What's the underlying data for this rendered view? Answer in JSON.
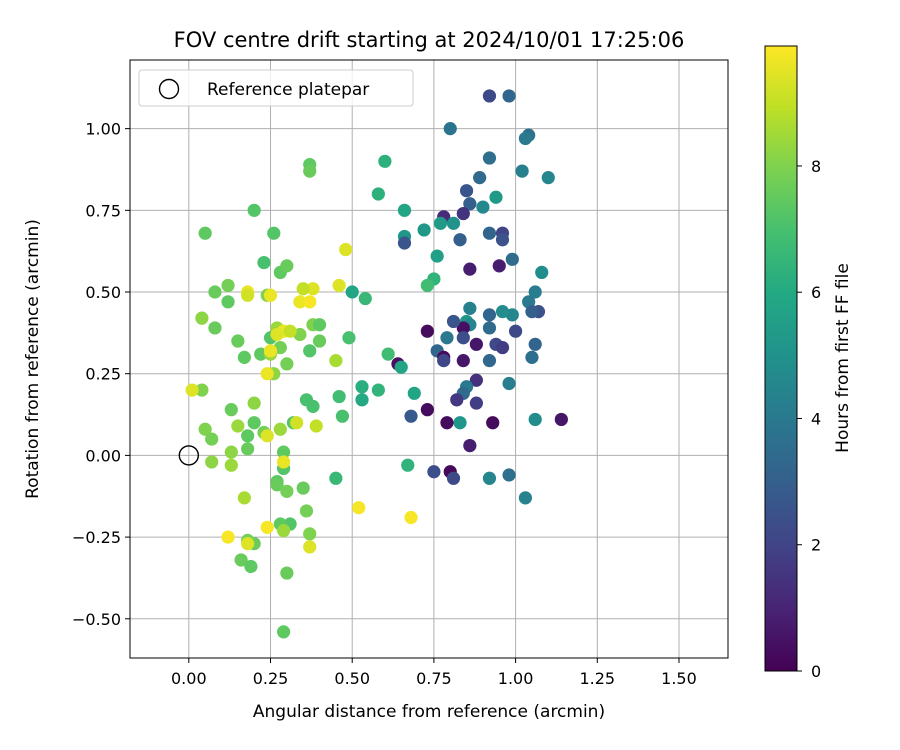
{
  "chart_data": {
    "type": "scatter",
    "title": "FOV centre drift starting at 2024/10/01 17:25:06",
    "xlabel": "Angular distance from reference (arcmin)",
    "ylabel": "Rotation from reference (arcmin)",
    "xlim": [
      -0.18,
      1.65
    ],
    "ylim": [
      -0.62,
      1.21
    ],
    "xticks": [
      "0.00",
      "0.25",
      "0.50",
      "0.75",
      "1.00",
      "1.25",
      "1.50"
    ],
    "xtick_values": [
      0,
      0.25,
      0.5,
      0.75,
      1.0,
      1.25,
      1.5
    ],
    "yticks": [
      "1.00",
      "0.75",
      "0.50",
      "0.25",
      "0.00",
      "−0.25",
      "−0.50"
    ],
    "ytick_values": [
      1.0,
      0.75,
      0.5,
      0.25,
      0,
      -0.25,
      -0.5
    ],
    "grid": true,
    "legend": {
      "placement": "top-left",
      "entries": [
        "Reference platepar"
      ]
    },
    "reference_point": {
      "x": 0.0,
      "y": 0.0
    },
    "colorbar": {
      "label": "Hours from first FF file",
      "colormap": "viridis",
      "range": [
        0,
        9.9
      ],
      "ticks": [
        "0",
        "2",
        "4",
        "6",
        "8"
      ],
      "tick_values": [
        0,
        2,
        4,
        6,
        8
      ]
    },
    "series": [
      {
        "points": [
          [
            0.92,
            1.1,
            2.2
          ],
          [
            0.98,
            1.1,
            3.3
          ],
          [
            0.8,
            1.0,
            3.8
          ],
          [
            1.04,
            0.98,
            3.6
          ],
          [
            1.03,
            0.97,
            4.0
          ],
          [
            0.92,
            0.91,
            3.6
          ],
          [
            1.02,
            0.87,
            4.3
          ],
          [
            1.1,
            0.85,
            4.5
          ],
          [
            0.85,
            0.81,
            2.6
          ],
          [
            0.89,
            0.85,
            3.4
          ],
          [
            0.86,
            0.77,
            3.0
          ],
          [
            0.9,
            0.76,
            4.6
          ],
          [
            0.94,
            0.79,
            5.3
          ],
          [
            0.84,
            0.74,
            1.5
          ],
          [
            0.78,
            0.73,
            1.2
          ],
          [
            0.81,
            0.71,
            5.0
          ],
          [
            0.77,
            0.71,
            5.4
          ],
          [
            0.83,
            0.66,
            3.0
          ],
          [
            0.92,
            0.68,
            3.2
          ],
          [
            0.96,
            0.68,
            2.0
          ],
          [
            0.96,
            0.66,
            2.5
          ],
          [
            0.99,
            0.6,
            3.5
          ],
          [
            0.86,
            0.57,
            0.8
          ],
          [
            0.95,
            0.58,
            0.8
          ],
          [
            1.08,
            0.56,
            4.8
          ],
          [
            1.06,
            0.5,
            4.2
          ],
          [
            1.04,
            0.47,
            4.0
          ],
          [
            1.07,
            0.44,
            2.5
          ],
          [
            1.05,
            0.44,
            3.0
          ],
          [
            0.99,
            0.43,
            4.5
          ],
          [
            0.96,
            0.44,
            4.8
          ],
          [
            0.92,
            0.43,
            3.2
          ],
          [
            0.86,
            0.45,
            4.3
          ],
          [
            0.85,
            0.41,
            5.2
          ],
          [
            0.86,
            0.4,
            4.5
          ],
          [
            0.84,
            0.39,
            0.4
          ],
          [
            0.81,
            0.41,
            2.6
          ],
          [
            0.79,
            0.36,
            4.0
          ],
          [
            0.76,
            0.32,
            3.3
          ],
          [
            0.73,
            0.38,
            0.3
          ],
          [
            0.78,
            0.3,
            0.3
          ],
          [
            0.78,
            0.29,
            2.1
          ],
          [
            0.84,
            0.29,
            0.6
          ],
          [
            0.84,
            0.36,
            2.4
          ],
          [
            0.88,
            0.34,
            0.6
          ],
          [
            0.92,
            0.39,
            3.4
          ],
          [
            0.94,
            0.34,
            2.2
          ],
          [
            0.96,
            0.33,
            1.8
          ],
          [
            0.92,
            0.29,
            3.3
          ],
          [
            1.0,
            0.38,
            2.2
          ],
          [
            1.06,
            0.34,
            3.2
          ],
          [
            1.05,
            0.3,
            3.6
          ],
          [
            0.88,
            0.23,
            1.4
          ],
          [
            0.85,
            0.21,
            4.0
          ],
          [
            0.84,
            0.19,
            3.4
          ],
          [
            0.82,
            0.17,
            1.6
          ],
          [
            0.88,
            0.16,
            1.8
          ],
          [
            0.98,
            0.22,
            4.2
          ],
          [
            0.86,
            0.03,
            0.8
          ],
          [
            0.93,
            0.1,
            0.3
          ],
          [
            0.83,
            0.1,
            5.2
          ],
          [
            0.79,
            0.1,
            0.3
          ],
          [
            0.73,
            0.14,
            0.3
          ],
          [
            0.68,
            0.12,
            2.8
          ],
          [
            0.64,
            0.28,
            0.4
          ],
          [
            0.65,
            0.27,
            5.8
          ],
          [
            0.69,
            0.19,
            5.8
          ],
          [
            0.75,
            -0.05,
            2.4
          ],
          [
            0.8,
            -0.05,
            0.2
          ],
          [
            0.81,
            -0.07,
            2.2
          ],
          [
            0.92,
            -0.07,
            4.5
          ],
          [
            0.98,
            -0.06,
            3.6
          ],
          [
            1.03,
            -0.13,
            4.4
          ],
          [
            1.06,
            0.11,
            4.8
          ],
          [
            1.14,
            0.11,
            0.6
          ],
          [
            0.6,
            0.9,
            6.3
          ],
          [
            0.58,
            0.8,
            6.3
          ],
          [
            0.66,
            0.75,
            5.8
          ],
          [
            0.66,
            0.67,
            5.2
          ],
          [
            0.66,
            0.65,
            2.6
          ],
          [
            0.72,
            0.69,
            5.2
          ],
          [
            0.76,
            0.61,
            5.6
          ],
          [
            0.75,
            0.54,
            6.4
          ],
          [
            0.73,
            0.52,
            6.8
          ],
          [
            0.5,
            0.5,
            5.8
          ],
          [
            0.54,
            0.48,
            6.6
          ],
          [
            0.61,
            0.31,
            6.8
          ],
          [
            0.58,
            0.2,
            6.4
          ],
          [
            0.53,
            0.21,
            6.2
          ],
          [
            0.53,
            0.17,
            6.0
          ],
          [
            0.67,
            -0.03,
            6.4
          ],
          [
            0.45,
            -0.07,
            6.6
          ],
          [
            0.47,
            0.12,
            7.0
          ],
          [
            0.46,
            0.18,
            6.8
          ],
          [
            0.49,
            0.36,
            7.0
          ],
          [
            0.37,
            0.89,
            7.4
          ],
          [
            0.37,
            0.87,
            7.6
          ],
          [
            0.2,
            0.75,
            7.2
          ],
          [
            0.05,
            0.68,
            7.4
          ],
          [
            0.26,
            0.68,
            7.2
          ],
          [
            0.23,
            0.59,
            7.0
          ],
          [
            0.28,
            0.56,
            7.4
          ],
          [
            0.3,
            0.58,
            7.6
          ],
          [
            0.24,
            0.49,
            8.0
          ],
          [
            0.08,
            0.5,
            7.6
          ],
          [
            0.12,
            0.52,
            7.8
          ],
          [
            0.12,
            0.47,
            7.4
          ],
          [
            0.04,
            0.42,
            8.2
          ],
          [
            0.08,
            0.39,
            7.6
          ],
          [
            0.15,
            0.35,
            7.6
          ],
          [
            0.17,
            0.3,
            7.4
          ],
          [
            0.22,
            0.31,
            7.4
          ],
          [
            0.25,
            0.36,
            7.2
          ],
          [
            0.27,
            0.39,
            8.4
          ],
          [
            0.28,
            0.33,
            7.8
          ],
          [
            0.3,
            0.28,
            7.8
          ],
          [
            0.34,
            0.37,
            8.0
          ],
          [
            0.37,
            0.32,
            7.2
          ],
          [
            0.38,
            0.4,
            8.0
          ],
          [
            0.4,
            0.4,
            7.4
          ],
          [
            0.4,
            0.35,
            7.6
          ],
          [
            0.36,
            0.17,
            7.0
          ],
          [
            0.38,
            0.15,
            7.0
          ],
          [
            0.32,
            0.1,
            7.2
          ],
          [
            0.26,
            0.25,
            8.2
          ],
          [
            0.25,
            0.31,
            8.4
          ],
          [
            0.2,
            0.1,
            7.4
          ],
          [
            0.18,
            0.06,
            7.4
          ],
          [
            0.2,
            0.16,
            8.2
          ],
          [
            0.13,
            0.14,
            7.6
          ],
          [
            0.04,
            0.2,
            8.0
          ],
          [
            0.05,
            0.08,
            8.0
          ],
          [
            0.07,
            0.05,
            7.8
          ],
          [
            0.13,
            0.01,
            8.2
          ],
          [
            0.18,
            0.02,
            7.6
          ],
          [
            0.23,
            0.07,
            7.8
          ],
          [
            0.28,
            0.08,
            8.4
          ],
          [
            0.29,
            0.01,
            7.4
          ],
          [
            0.29,
            -0.04,
            7.2
          ],
          [
            0.27,
            -0.08,
            7.4
          ],
          [
            0.27,
            -0.09,
            7.6
          ],
          [
            0.3,
            -0.11,
            7.8
          ],
          [
            0.35,
            -0.1,
            7.6
          ],
          [
            0.31,
            -0.21,
            7.2
          ],
          [
            0.28,
            -0.21,
            7.4
          ],
          [
            0.36,
            -0.17,
            7.8
          ],
          [
            0.37,
            -0.24,
            8.0
          ],
          [
            0.29,
            -0.23,
            8.4
          ],
          [
            0.2,
            -0.27,
            7.6
          ],
          [
            0.18,
            -0.26,
            7.8
          ],
          [
            0.16,
            -0.32,
            7.6
          ],
          [
            0.19,
            -0.34,
            7.4
          ],
          [
            0.17,
            -0.13,
            8.6
          ],
          [
            0.3,
            -0.36,
            7.6
          ],
          [
            0.29,
            -0.54,
            7.4
          ],
          [
            0.07,
            -0.02,
            8.2
          ],
          [
            0.13,
            -0.03,
            8.4
          ],
          [
            0.15,
            0.09,
            8.4
          ],
          [
            0.48,
            0.63,
            9.4
          ],
          [
            0.38,
            0.51,
            9.4
          ],
          [
            0.35,
            0.51,
            9.0
          ],
          [
            0.34,
            0.47,
            9.6
          ],
          [
            0.37,
            0.47,
            9.8
          ],
          [
            0.46,
            0.52,
            9.4
          ],
          [
            0.18,
            0.5,
            9.6
          ],
          [
            0.18,
            0.49,
            9.2
          ],
          [
            0.25,
            0.49,
            9.6
          ],
          [
            0.29,
            0.38,
            9.6
          ],
          [
            0.27,
            0.37,
            9.4
          ],
          [
            0.31,
            0.38,
            9.0
          ],
          [
            0.25,
            0.32,
            9.6
          ],
          [
            0.24,
            0.25,
            9.6
          ],
          [
            0.45,
            0.29,
            8.6
          ],
          [
            0.33,
            0.1,
            9.2
          ],
          [
            0.39,
            0.09,
            9.0
          ],
          [
            0.24,
            0.06,
            9.4
          ],
          [
            0.29,
            -0.02,
            9.6
          ],
          [
            0.01,
            0.2,
            9.4
          ],
          [
            0.52,
            -0.16,
            9.8
          ],
          [
            0.68,
            -0.19,
            9.8
          ],
          [
            0.24,
            -0.22,
            9.8
          ],
          [
            0.12,
            -0.25,
            9.8
          ],
          [
            0.18,
            -0.27,
            9.4
          ],
          [
            0.37,
            -0.28,
            9.4
          ]
        ]
      }
    ]
  }
}
